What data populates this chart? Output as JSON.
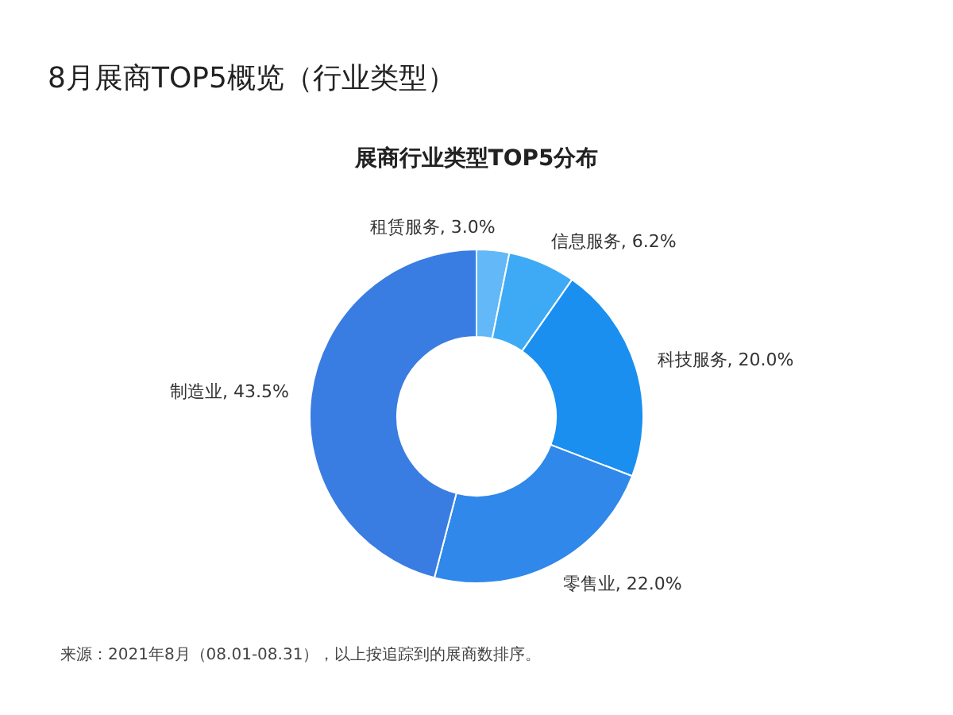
{
  "chart_data": {
    "type": "donut",
    "title": "8月展商TOP5概览（行业类型）",
    "subtitle": "展商行业类型TOP5分布",
    "categories": [
      "租赁服务",
      "信息服务",
      "科技服务",
      "零售业",
      "制造业"
    ],
    "values": [
      3.0,
      6.2,
      20.0,
      22.0,
      43.5
    ],
    "value_labels": [
      "3.0%",
      "6.2%",
      "20.0%",
      "22.0%",
      "43.5%"
    ],
    "colors": [
      "#63b8f7",
      "#3eaaf5",
      "#1a8ff0",
      "#2f88ea",
      "#3a7de2"
    ],
    "annotations": [
      "来源：2021年8月（08.01-08.31），以上按追踪到的展商数排序。"
    ]
  }
}
